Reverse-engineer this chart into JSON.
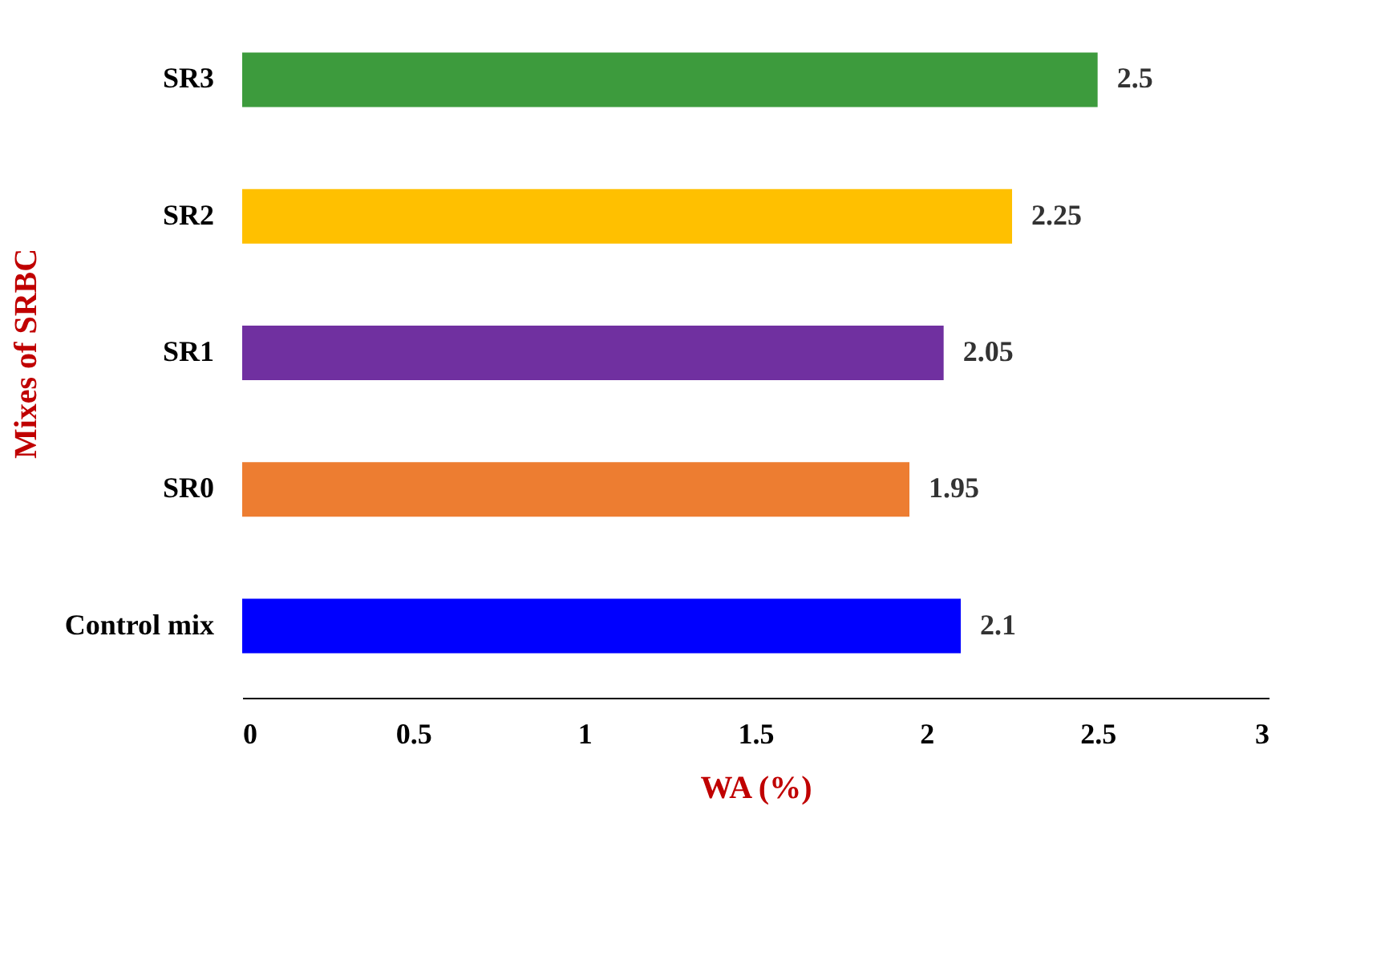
{
  "chart_data": {
    "type": "bar",
    "orientation": "horizontal",
    "xlabel": "WA (%)",
    "ylabel": "Mixes of SRBC",
    "categories": [
      "SR3",
      "SR2",
      "SR1",
      "SR0",
      "Control mix"
    ],
    "values": [
      2.5,
      2.25,
      2.05,
      1.95,
      2.1
    ],
    "colors": [
      "#3d9b3d",
      "#ffc000",
      "#7030a0",
      "#ed7d31",
      "#0000ff"
    ],
    "xlim": [
      0,
      3
    ],
    "xticks": [
      0,
      0.5,
      1,
      1.5,
      2,
      2.5,
      3
    ],
    "grid": false,
    "data_labels": true
  }
}
